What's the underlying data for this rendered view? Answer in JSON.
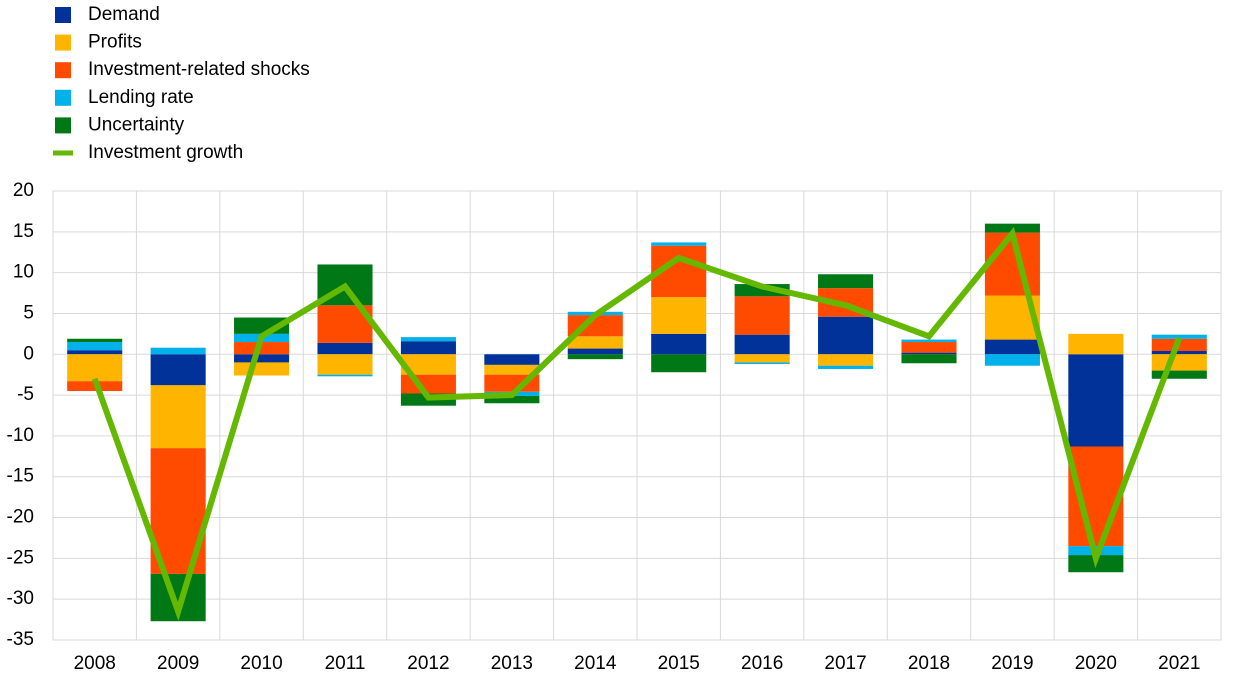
{
  "chart_data": {
    "type": "bar",
    "stacked": true,
    "categories": [
      "2008",
      "2009",
      "2010",
      "2011",
      "2012",
      "2013",
      "2014",
      "2015",
      "2016",
      "2017",
      "2018",
      "2019",
      "2020",
      "2021"
    ],
    "series": [
      {
        "name": "Demand",
        "color": "#003299",
        "values": [
          0.5,
          -3.8,
          -1,
          1.4,
          1.6,
          -1.3,
          0.7,
          2.5,
          2.4,
          4.6,
          0.2,
          1.8,
          -11.3,
          0.4
        ]
      },
      {
        "name": "Profits",
        "color": "#ffb400",
        "values": [
          -3.3,
          -7.7,
          -1.6,
          -2.5,
          -2.5,
          -1.2,
          1.5,
          4.5,
          -1.0,
          -1.4,
          0,
          5.4,
          2.5,
          -2.0
        ]
      },
      {
        "name": "Investment-related shocks",
        "color": "#ff4b00",
        "values": [
          -1.2,
          -15.4,
          1.5,
          4.6,
          -2.3,
          -2.1,
          2.6,
          6.3,
          4.7,
          3.5,
          1.3,
          7.7,
          -12.2,
          1.5
        ]
      },
      {
        "name": "Lending rate",
        "color": "#00b1ea",
        "values": [
          1,
          0.8,
          1,
          -0.2,
          0.5,
          -0.5,
          0.4,
          0.4,
          -0.2,
          -0.4,
          0.3,
          -1.4,
          -1.1,
          0.5
        ]
      },
      {
        "name": "Uncertainty",
        "color": "#007816",
        "values": [
          0.4,
          -5.8,
          2,
          5,
          -1.5,
          -0.9,
          -0.6,
          -2.2,
          1.5,
          1.7,
          -1.1,
          1.1,
          -2.1,
          -1.0
        ]
      },
      {
        "name": "Investment growth",
        "color": "#65b800",
        "type": "line",
        "values": [
          -3,
          -31.5,
          2.2,
          8.3,
          -5.3,
          -5,
          4.8,
          11.8,
          8.3,
          6,
          2.2,
          14.8,
          -25,
          2
        ]
      }
    ],
    "ylim": [
      -35,
      20
    ],
    "yticks": [
      -35,
      -30,
      -25,
      -20,
      -15,
      -10,
      -5,
      0,
      5,
      10,
      15,
      20
    ],
    "grid": true
  }
}
